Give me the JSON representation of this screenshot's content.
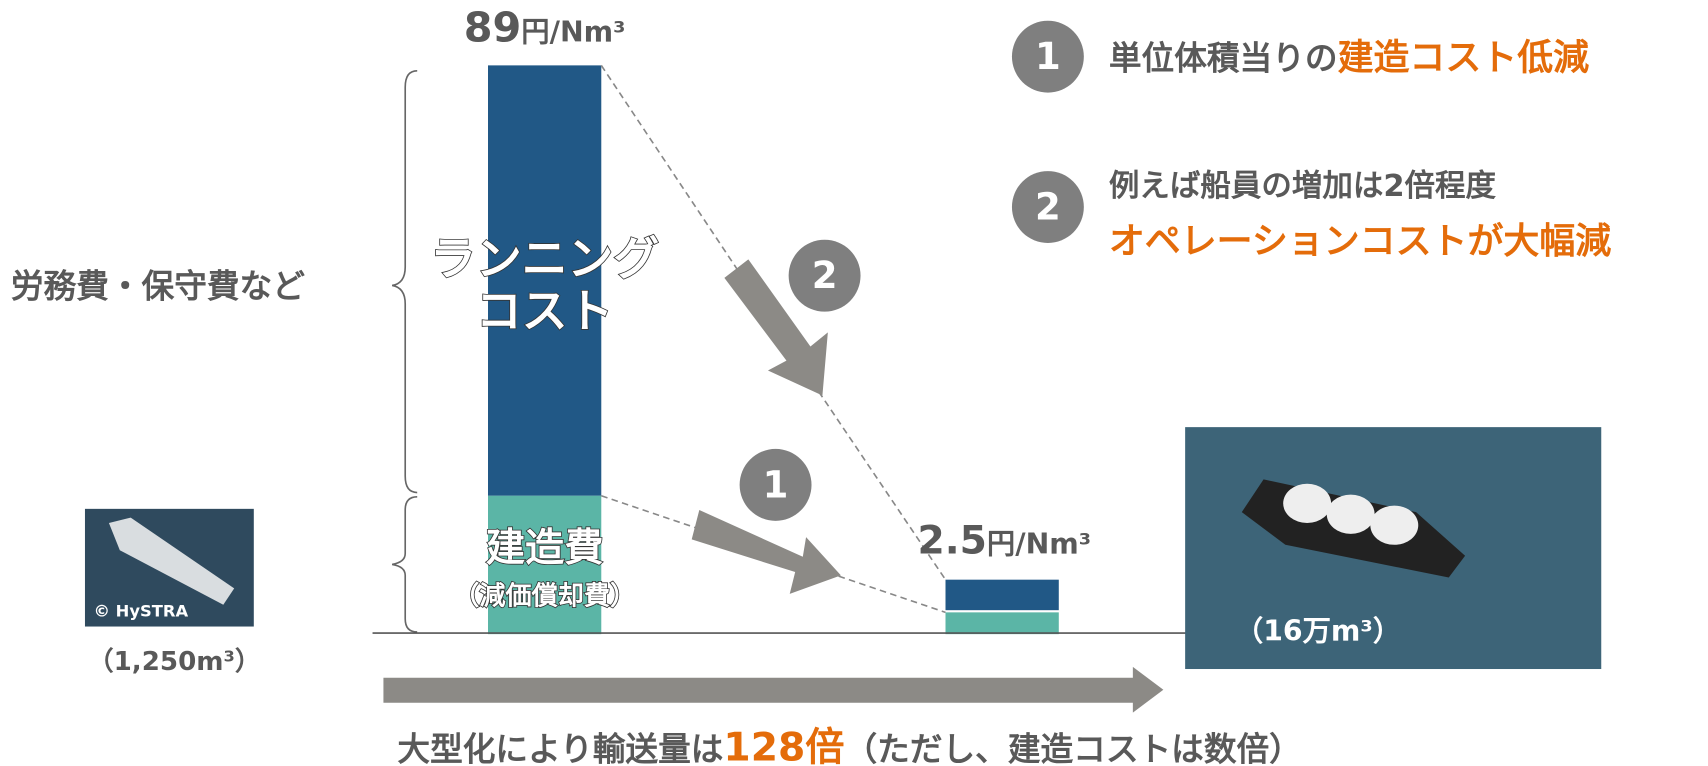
{
  "bar_large": {
    "value": "89",
    "unit": "円/Nm³",
    "running_cost": [
      "ランニング",
      "コスト"
    ],
    "construction_cost": "建造費",
    "depreciation": "（減価償却費）"
  },
  "bar_small": {
    "value": "2.5",
    "unit": "円/Nm³"
  },
  "left_label": "労務費・保守費など",
  "small_ship": {
    "credit": "© HySTRA",
    "capacity": "（1,250m³）"
  },
  "large_ship": {
    "capacity": "（16万m³）"
  },
  "points": [
    {
      "number": "1",
      "lines": [
        {
          "text": "単位体積当りの",
          "highlight": "建造コスト低減"
        }
      ]
    },
    {
      "number": "2",
      "lines": [
        {
          "text": "例えば船員の増加は2倍程度"
        },
        {
          "highlight": "オペレーションコストが大幅減"
        }
      ]
    }
  ],
  "footer": {
    "text": "大型化により輸送量は",
    "highlight": "128倍",
    "note": "（ただし、建造コストは数倍）"
  }
}
